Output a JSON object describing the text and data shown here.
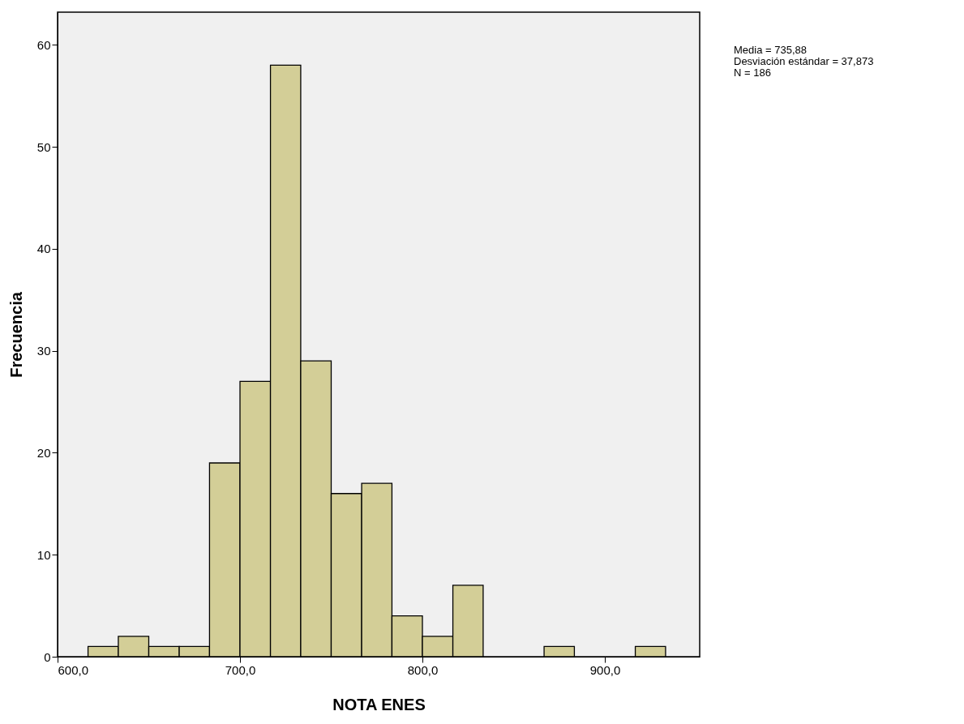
{
  "chart_data": {
    "type": "histogram",
    "xlabel": "NOTA ENES",
    "ylabel": "Frecuencia",
    "bins": [
      616.7,
      633.3,
      650,
      666.7,
      683.3,
      700,
      716.7,
      733.3,
      750,
      766.7,
      783.3,
      800,
      816.7,
      833.3,
      850,
      866.7,
      883.3,
      900,
      916.7,
      933.3
    ],
    "values": [
      1,
      2,
      1,
      1,
      19,
      27,
      58,
      29,
      16,
      17,
      4,
      2,
      7,
      0,
      0,
      1,
      0,
      0,
      1
    ],
    "color": "#d3ce97",
    "xlim": [
      600,
      952
    ],
    "xticks": [
      {
        "value": 600,
        "label": "600,0"
      },
      {
        "value": 700,
        "label": "700,0"
      },
      {
        "value": 800,
        "label": "800,0"
      },
      {
        "value": 900,
        "label": "900,0"
      }
    ],
    "ylim": [
      0,
      63.2
    ],
    "yticks": [
      0,
      10,
      20,
      30,
      40,
      50,
      60
    ],
    "grid": false,
    "annotations": [
      "Media = 735,88",
      "Desviación estándar = 37,873",
      "N = 186"
    ]
  }
}
